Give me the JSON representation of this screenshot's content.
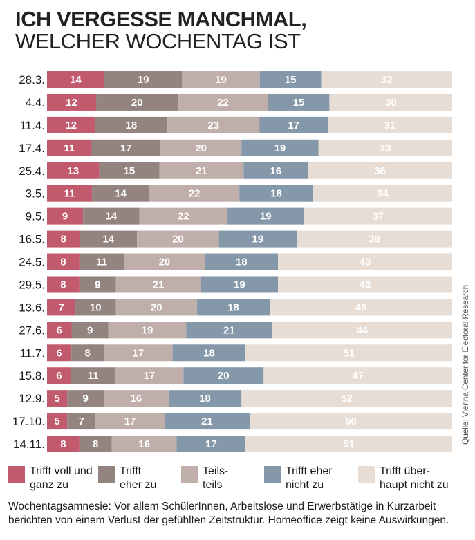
{
  "title": {
    "line1": "ICH VERGESSE MANCHMAL,",
    "line2": "WELCHER WOCHENTAG IST"
  },
  "source": "Quelle: Vienna Center for Electoral Research",
  "note": "Wochentagsamnesie: Vor allem SchülerInnen, Arbeitslose und Erwerbstätige in Kurzarbeit berichten von einem Verlust der gefühlten Zeitstruktur. Homeoffice zeigt keine Auswirkungen.",
  "chart_data": {
    "type": "bar",
    "orientation": "horizontal",
    "stacked": true,
    "title": "ICH VERGESSE MANCHMAL, WELCHER WOCHENTAG IST",
    "categories": [
      "28.3.",
      "4.4.",
      "11.4.",
      "17.4.",
      "25.4.",
      "3.5.",
      "9.5.",
      "16.5.",
      "24.5.",
      "29.5.",
      "13.6.",
      "27.6.",
      "11.7.",
      "15.8.",
      "12.9.",
      "17.10.",
      "14.11."
    ],
    "series": [
      {
        "name": "Trifft voll und ganz zu",
        "color": "#c25a6e",
        "values": [
          14,
          12,
          12,
          11,
          13,
          11,
          9,
          8,
          8,
          8,
          7,
          6,
          6,
          6,
          5,
          5,
          8
        ]
      },
      {
        "name": "Trifft eher zu",
        "color": "#948480",
        "values": [
          19,
          20,
          18,
          17,
          15,
          14,
          14,
          14,
          11,
          9,
          10,
          9,
          8,
          11,
          9,
          7,
          8
        ]
      },
      {
        "name": "Teils-teils",
        "color": "#c0aeaa",
        "values": [
          19,
          22,
          23,
          20,
          21,
          22,
          22,
          20,
          20,
          21,
          20,
          19,
          17,
          17,
          16,
          17,
          16
        ]
      },
      {
        "name": "Trifft eher nicht zu",
        "color": "#8498aa",
        "values": [
          15,
          15,
          17,
          19,
          16,
          18,
          19,
          19,
          18,
          19,
          18,
          21,
          18,
          20,
          18,
          21,
          17
        ]
      },
      {
        "name": "Trifft überhaupt nicht zu",
        "color": "#e7ddd5",
        "values": [
          32,
          30,
          31,
          33,
          36,
          34,
          37,
          38,
          43,
          43,
          45,
          44,
          51,
          47,
          52,
          50,
          51
        ]
      }
    ],
    "legend": [
      {
        "label": "Trifft voll und\nganz zu",
        "color": "#c25a6e"
      },
      {
        "label": "Trifft\neher zu",
        "color": "#948480"
      },
      {
        "label": "Teils-\nteils",
        "color": "#c0aeaa"
      },
      {
        "label": "Trifft eher\nnicht zu",
        "color": "#8498aa"
      },
      {
        "label": "Trifft über-\nhaupt nicht zu",
        "color": "#e7ddd5"
      }
    ],
    "legend_position": "bottom",
    "grid": false
  }
}
